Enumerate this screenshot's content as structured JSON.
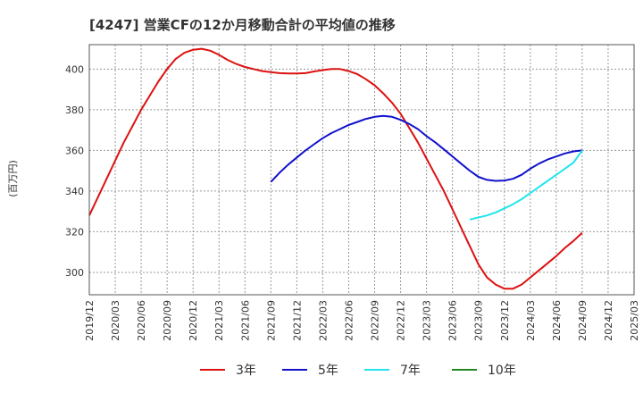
{
  "chart_data": {
    "type": "line",
    "title": "[4247]  営業CFの12か月移動合計の平均値の推移",
    "ylabel": "(百万円)",
    "xlabel": "",
    "ylim": [
      289,
      412
    ],
    "yticks": [
      300,
      320,
      340,
      360,
      380,
      400
    ],
    "xticks": [
      "2019/12",
      "2020/03",
      "2020/06",
      "2020/09",
      "2020/12",
      "2021/03",
      "2021/06",
      "2021/09",
      "2021/12",
      "2022/03",
      "2022/06",
      "2022/09",
      "2022/12",
      "2023/03",
      "2023/06",
      "2023/09",
      "2023/12",
      "2024/03",
      "2024/06",
      "2024/09",
      "2024/12",
      "2025/03"
    ],
    "grid": true,
    "legend_position": "bottom",
    "series": [
      {
        "name": "3年",
        "color": "#dd1111",
        "x": [
          "2019/12",
          "2020/01",
          "2020/02",
          "2020/03",
          "2020/04",
          "2020/05",
          "2020/06",
          "2020/07",
          "2020/08",
          "2020/09",
          "2020/10",
          "2020/11",
          "2020/12",
          "2021/01",
          "2021/02",
          "2021/03",
          "2021/04",
          "2021/05",
          "2021/06",
          "2021/07",
          "2021/08",
          "2021/09",
          "2021/10",
          "2021/11",
          "2021/12",
          "2022/01",
          "2022/02",
          "2022/03",
          "2022/04",
          "2022/05",
          "2022/06",
          "2022/07",
          "2022/08",
          "2022/09",
          "2022/10",
          "2022/11",
          "2022/12",
          "2023/01",
          "2023/02",
          "2023/03",
          "2023/04",
          "2023/05",
          "2023/06",
          "2023/07",
          "2023/08",
          "2023/09",
          "2023/10",
          "2023/11",
          "2023/12",
          "2024/01",
          "2024/02",
          "2024/03",
          "2024/04",
          "2024/05",
          "2024/06",
          "2024/07",
          "2024/08",
          "2024/09"
        ],
        "values": [
          328,
          337,
          346,
          355,
          364,
          372,
          380,
          387,
          394,
          400,
          405,
          408,
          409.5,
          410,
          409,
          407,
          404.5,
          402.5,
          401,
          400,
          399,
          398.5,
          398,
          397.8,
          397.8,
          398,
          398.8,
          399.5,
          400,
          400,
          399,
          397.5,
          395,
          392,
          388,
          383.5,
          378,
          371,
          364,
          356,
          348,
          340,
          331,
          322,
          313,
          304,
          297.5,
          294,
          292,
          292,
          294,
          297.5,
          301,
          304.5,
          308,
          312,
          315.5,
          319.5
        ]
      },
      {
        "name": "5年",
        "color": "#1111cc",
        "x": [
          "2021/09",
          "2021/10",
          "2021/11",
          "2021/12",
          "2022/01",
          "2022/02",
          "2022/03",
          "2022/04",
          "2022/05",
          "2022/06",
          "2022/07",
          "2022/08",
          "2022/09",
          "2022/10",
          "2022/11",
          "2022/12",
          "2023/01",
          "2023/02",
          "2023/03",
          "2023/04",
          "2023/05",
          "2023/06",
          "2023/07",
          "2023/08",
          "2023/09",
          "2023/10",
          "2023/11",
          "2023/12",
          "2024/01",
          "2024/02",
          "2024/03",
          "2024/04",
          "2024/05",
          "2024/06",
          "2024/07",
          "2024/08",
          "2024/09"
        ],
        "values": [
          344.5,
          349,
          353,
          356.5,
          360,
          363,
          366,
          368.5,
          370.5,
          372.5,
          374,
          375.5,
          376.5,
          377,
          376.5,
          375,
          373,
          370.5,
          367,
          364,
          360.5,
          357,
          353.5,
          350,
          347,
          345.5,
          345,
          345.2,
          346,
          348,
          351,
          353.5,
          355.5,
          357,
          358.5,
          359.5,
          360
        ]
      },
      {
        "name": "7年",
        "color": "#22e5ee",
        "x": [
          "2023/08",
          "2023/09",
          "2023/10",
          "2023/11",
          "2023/12",
          "2024/01",
          "2024/02",
          "2024/03",
          "2024/04",
          "2024/05",
          "2024/06",
          "2024/07",
          "2024/08",
          "2024/09"
        ],
        "values": [
          326,
          327,
          328,
          329.5,
          331.5,
          333.5,
          336,
          339,
          342,
          345,
          348,
          351,
          354,
          360
        ]
      },
      {
        "name": "10年",
        "color": "#228822",
        "x": [],
        "values": []
      }
    ]
  }
}
